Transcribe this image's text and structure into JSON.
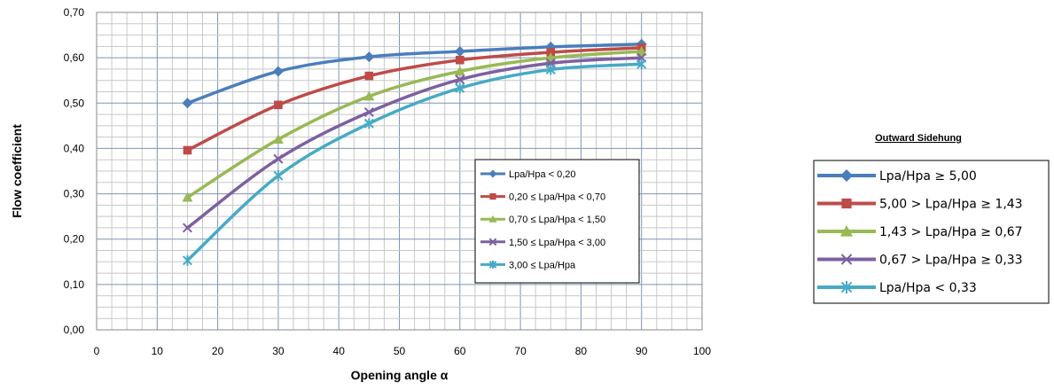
{
  "chart_data": {
    "type": "line",
    "xlabel": "Opening angle α",
    "ylabel": "Flow coefficient",
    "xlim": [
      0,
      100
    ],
    "ylim": [
      0,
      0.7
    ],
    "x_ticks": [
      "0",
      "10",
      "20",
      "30",
      "40",
      "50",
      "60",
      "70",
      "80",
      "90",
      "100"
    ],
    "y_ticks": [
      "0,00",
      "0,10",
      "0,20",
      "0,30",
      "0,40",
      "0,50",
      "0,60",
      "0,70"
    ],
    "grid": true,
    "x": [
      15,
      30,
      45,
      60,
      75,
      90
    ],
    "series": [
      {
        "name": "Lpa/Hpa < 0,20",
        "color": "#4a7ebb",
        "marker": "diamond",
        "values": [
          0.5,
          0.57,
          0.602,
          0.614,
          0.624,
          0.63
        ]
      },
      {
        "name": "0,20 ≤ Lpa/Hpa < 0,70",
        "color": "#be4b48",
        "marker": "square",
        "values": [
          0.396,
          0.496,
          0.56,
          0.595,
          0.612,
          0.622
        ]
      },
      {
        "name": "0,70 ≤ Lpa/Hpa < 1,50",
        "color": "#98b954",
        "marker": "triangle",
        "values": [
          0.292,
          0.42,
          0.515,
          0.57,
          0.6,
          0.614
        ]
      },
      {
        "name": "1,50 ≤ Lpa/Hpa < 3,00",
        "color": "#7d60a0",
        "marker": "x",
        "values": [
          0.225,
          0.377,
          0.48,
          0.552,
          0.588,
          0.6
        ]
      },
      {
        "name": "3,00 ≤ Lpa/Hpa",
        "color": "#46aac5",
        "marker": "star",
        "values": [
          0.153,
          0.34,
          0.455,
          0.533,
          0.574,
          0.586
        ]
      }
    ],
    "legend_placement": "lower-right inside plot",
    "secondary_legend": {
      "title": "Outward Sidehung",
      "entries": [
        {
          "label": "Lpa/Hpa ≥ 5,00",
          "color": "#4a7ebb",
          "marker": "diamond"
        },
        {
          "label": "5,00 > Lpa/Hpa ≥ 1,43",
          "color": "#be4b48",
          "marker": "square"
        },
        {
          "label": "1,43 > Lpa/Hpa ≥ 0,67",
          "color": "#98b954",
          "marker": "triangle"
        },
        {
          "label": "0,67 > Lpa/Hpa ≥ 0,33",
          "color": "#7d60a0",
          "marker": "x"
        },
        {
          "label": "Lpa/Hpa < 0,33",
          "color": "#46aac5",
          "marker": "star"
        }
      ]
    }
  }
}
